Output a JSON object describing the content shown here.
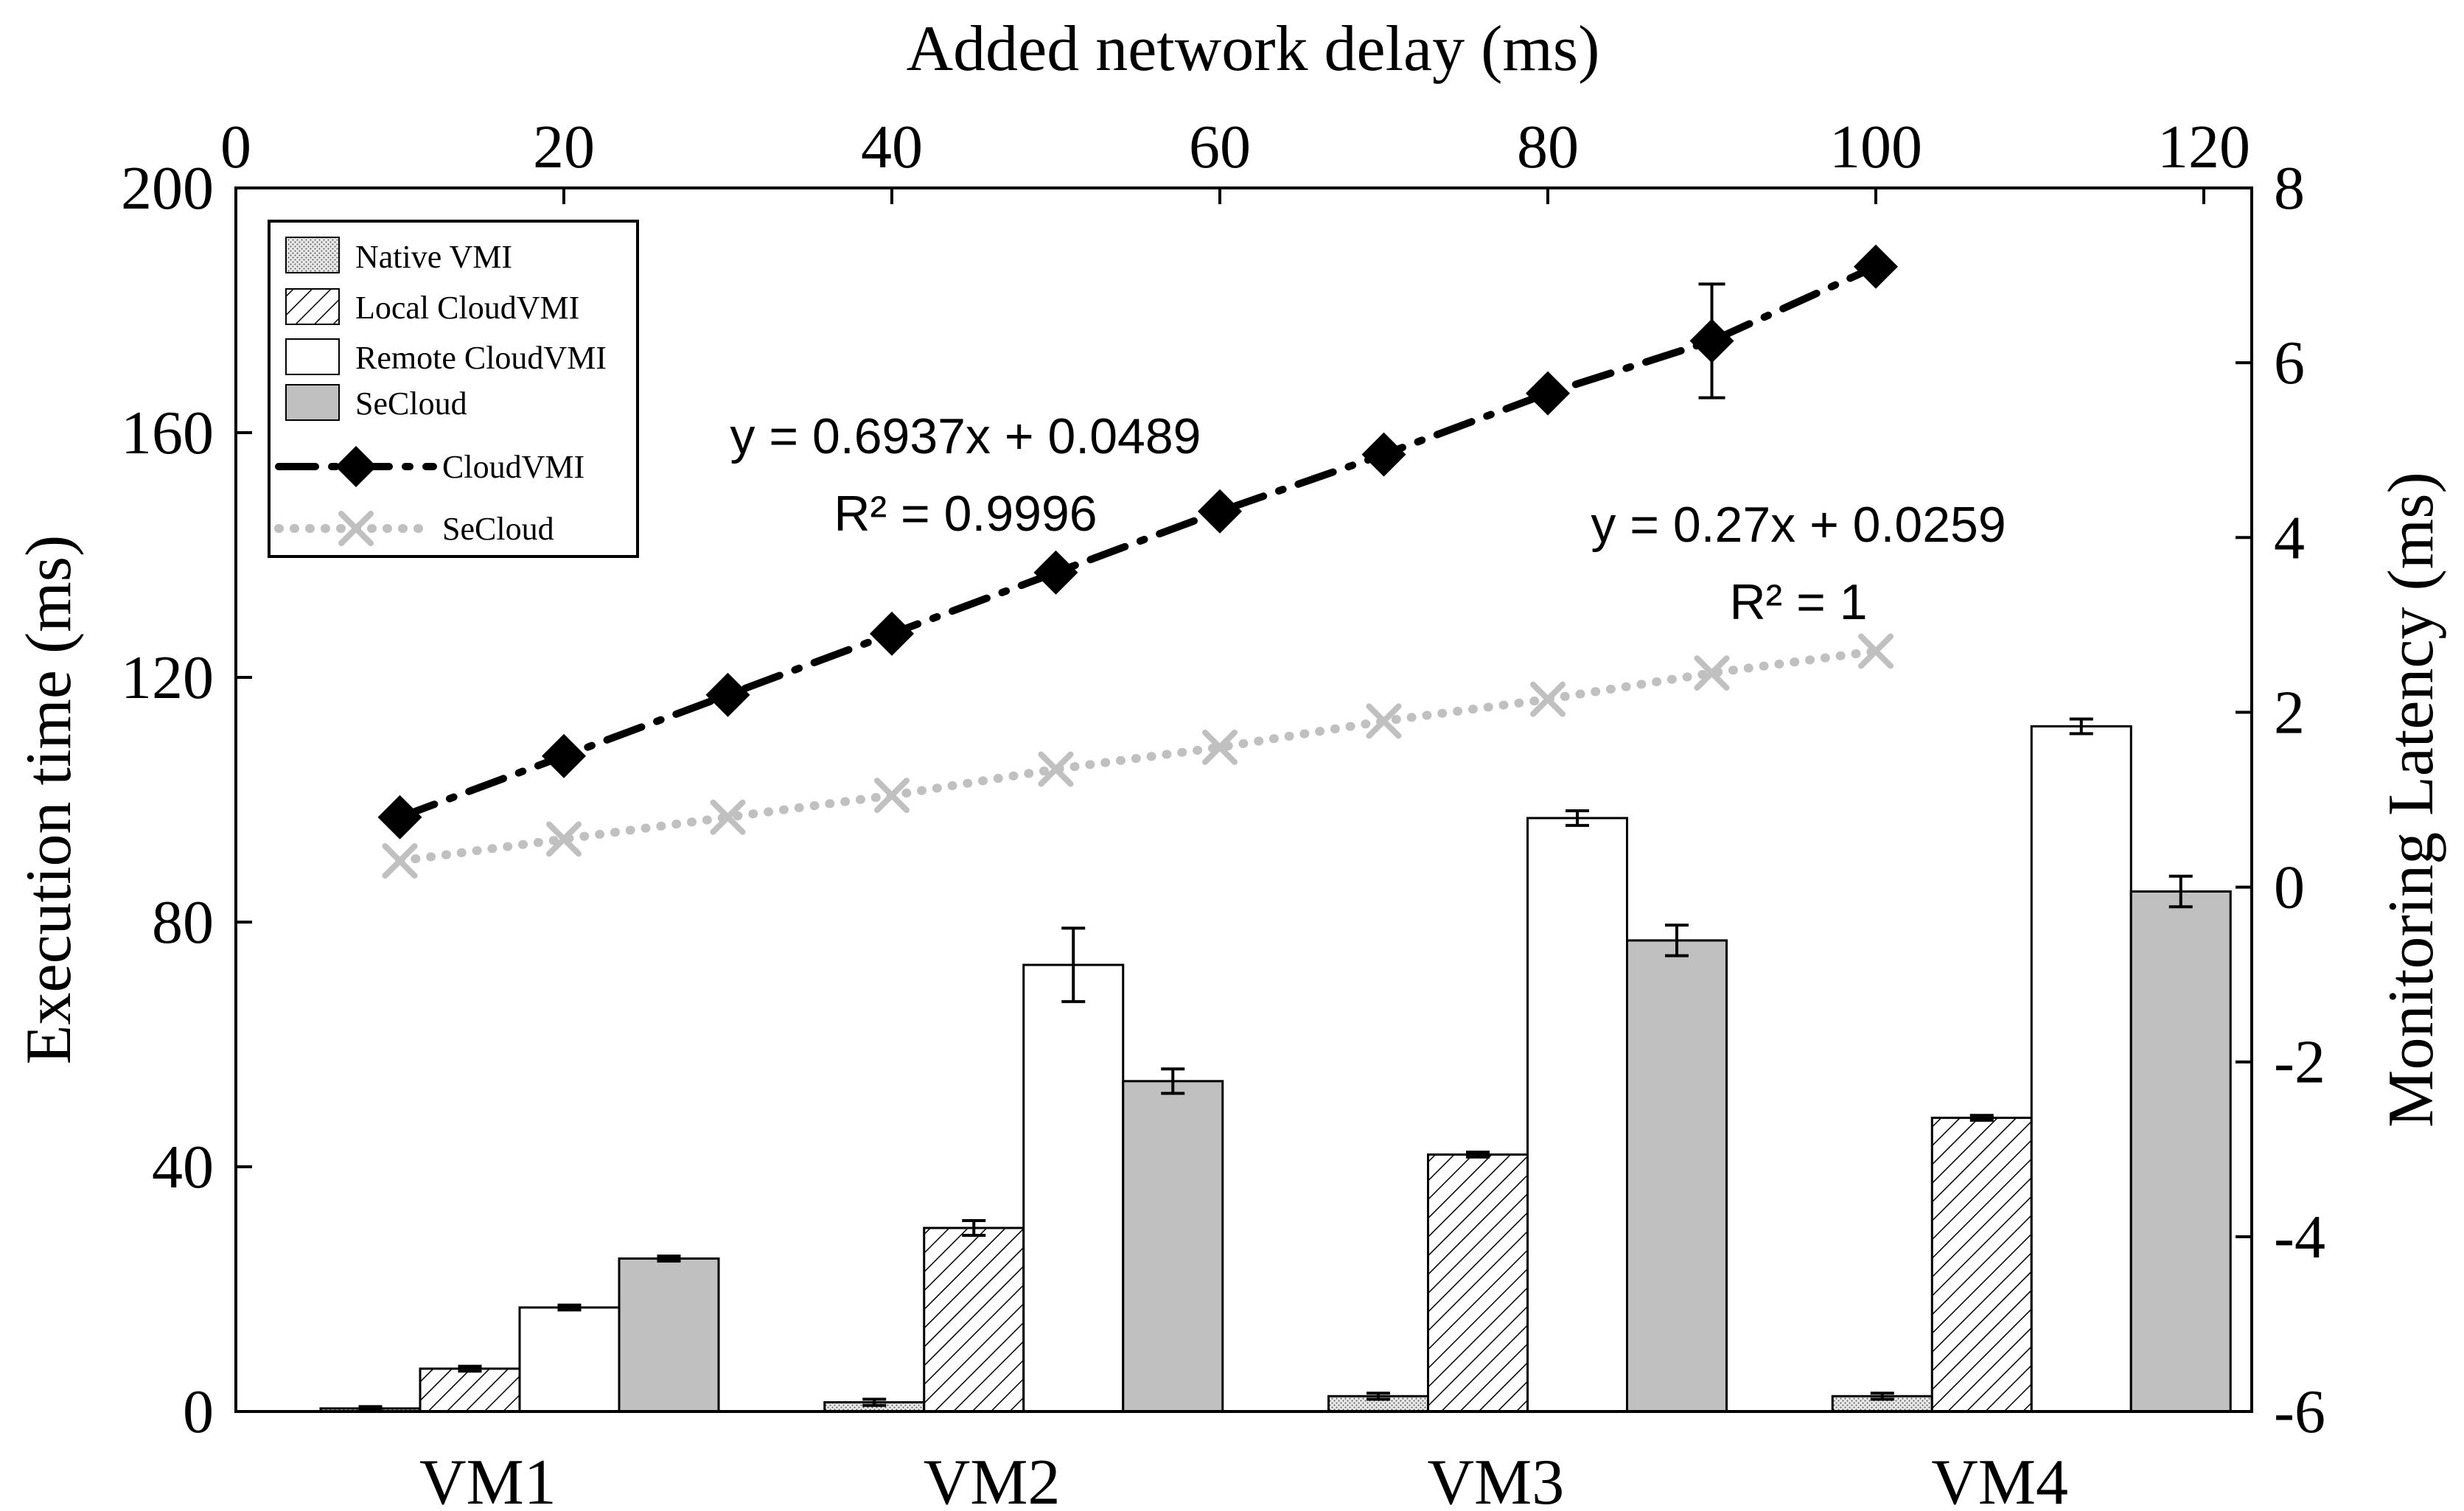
{
  "chart_data": {
    "type": "bar",
    "categories": [
      "VM1",
      "VM2",
      "VM3",
      "VM4"
    ],
    "bar_series": [
      {
        "name": "Native VMI",
        "values": [
          0.5,
          1.5,
          2.5,
          2.5
        ],
        "errors": [
          0.3,
          0.5,
          0.5,
          0.5
        ],
        "fill": "#e0e0e0",
        "pattern": "dots"
      },
      {
        "name": "Local CloudVMI",
        "values": [
          7,
          30,
          42,
          48
        ],
        "errors": [
          0.4,
          1.2,
          0.4,
          0.4
        ],
        "fill": "#ffffff",
        "pattern": "hatch"
      },
      {
        "name": "Remote CloudVMI",
        "values": [
          17,
          73,
          97,
          112
        ],
        "errors": [
          0.4,
          6,
          1.2,
          1.2
        ],
        "fill": "#ffffff",
        "pattern": "none"
      },
      {
        "name": "SeCloud",
        "values": [
          25,
          54,
          77,
          85
        ],
        "errors": [
          0.4,
          2,
          2.5,
          2.5
        ],
        "fill": "#c0c0c0",
        "pattern": "none"
      }
    ],
    "line_series": [
      {
        "name": "CloudVMI",
        "x": [
          10,
          20,
          30,
          40,
          50,
          60,
          70,
          80,
          90,
          100
        ],
        "y": [
          0.8,
          1.5,
          2.2,
          2.9,
          3.6,
          4.3,
          4.95,
          5.65,
          6.25,
          7.1
        ],
        "errors": [
          0,
          0,
          0,
          0,
          0,
          0,
          0,
          0,
          0.65,
          0
        ],
        "color": "#000000",
        "marker": "diamond"
      },
      {
        "name": "SeCloud",
        "x": [
          10,
          20,
          30,
          40,
          50,
          60,
          70,
          80,
          90,
          100
        ],
        "y": [
          0.3,
          0.55,
          0.8,
          1.05,
          1.35,
          1.6,
          1.9,
          2.15,
          2.45,
          2.7
        ],
        "errors": [
          0,
          0,
          0,
          0,
          0,
          0,
          0,
          0,
          0,
          0
        ],
        "color": "#c0c0c0",
        "marker": "x"
      }
    ],
    "xlabel_top": "Added network delay (ms)",
    "ylabel_left": "Execution time (ms)",
    "ylabel_right": "Monitoring Latency (ms)",
    "xlim_top": [
      0,
      120
    ],
    "ylim_left": [
      0,
      200
    ],
    "ylim_right": [
      -6,
      8
    ],
    "xticks_top": [
      0,
      20,
      40,
      60,
      80,
      100,
      120
    ],
    "yticks_left": [
      0,
      40,
      80,
      120,
      160,
      200
    ],
    "yticks_right": [
      -6,
      -4,
      -2,
      0,
      2,
      4,
      6,
      8
    ],
    "trendlines": [
      {
        "series": "CloudVMI",
        "equation": "y = 0.6937x + 0.0489",
        "r2": "R² = 0.9996"
      },
      {
        "series": "SeCloud",
        "equation": "y = 0.27x + 0.0259",
        "r2": "R² = 1"
      }
    ],
    "legend_position": "top-left"
  }
}
